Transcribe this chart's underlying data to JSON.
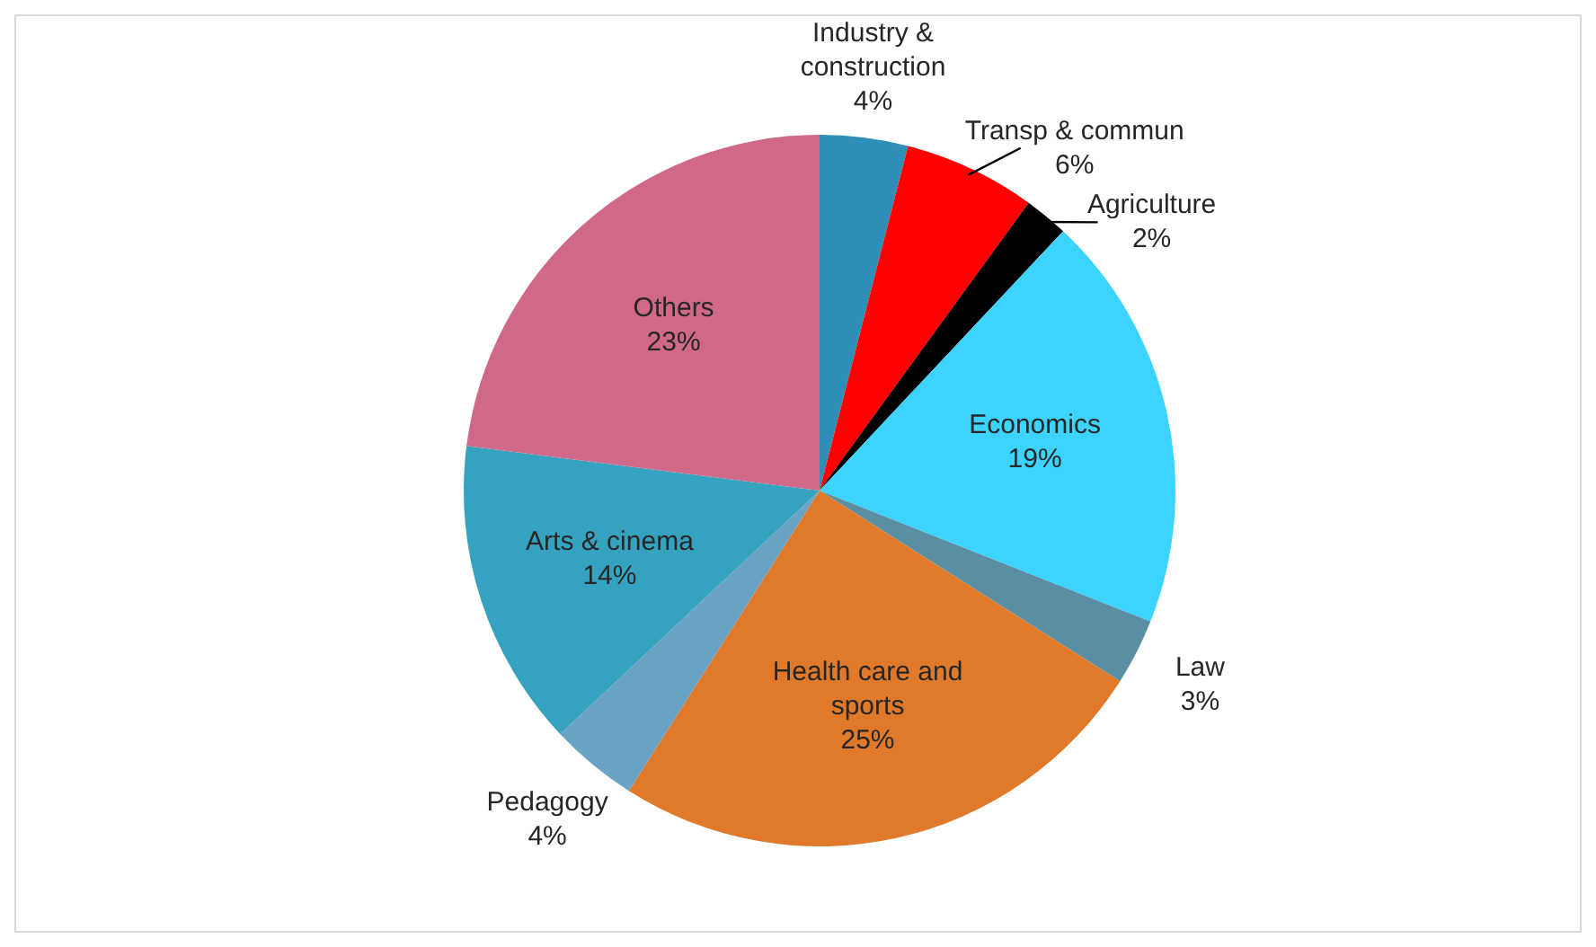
{
  "chart_data": {
    "type": "pie",
    "categories": [
      "Industry & construction",
      "Transp & commun",
      "Agriculture",
      "Economics",
      "Law",
      "Health care and sports",
      "Pedagogy",
      "Arts & cinema",
      "Others"
    ],
    "values": [
      4,
      6,
      2,
      19,
      3,
      25,
      4,
      14,
      23
    ],
    "colors": [
      "#2e8fb8",
      "#ff0000",
      "#000000",
      "#3dd3ff",
      "#5a8fa3",
      "#e07a2a",
      "#6ba3c4",
      "#35a3c0",
      "#d06888"
    ],
    "value_labels": [
      "4%",
      "6%",
      "2%",
      "19%",
      "3%",
      "25%",
      "4%",
      "14%",
      "23%"
    ],
    "legend": false
  }
}
